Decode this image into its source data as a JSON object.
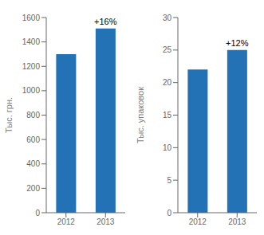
{
  "chart_data": [
    {
      "type": "bar",
      "categories": [
        "2012",
        "2013"
      ],
      "values": [
        1300,
        1510
      ],
      "ylabel": "Тыс. грн.",
      "ylim": [
        0,
        1600
      ],
      "yticks": [
        0,
        200,
        400,
        600,
        800,
        1000,
        1200,
        1400,
        1600
      ],
      "color": "#2272b5",
      "grid": false,
      "annotations": [
        {
          "text": "+16%",
          "x": "2013",
          "y": 1510
        }
      ]
    },
    {
      "type": "bar",
      "categories": [
        "2012",
        "2013"
      ],
      "values": [
        22,
        25
      ],
      "ylabel": "Тыс. упаковок",
      "ylim": [
        0,
        30
      ],
      "yticks": [
        0,
        5,
        10,
        15,
        20,
        25,
        30
      ],
      "color": "#2272b5",
      "grid": false,
      "annotations": [
        {
          "text": "+12%",
          "x": "2013",
          "y": 25
        }
      ]
    }
  ]
}
